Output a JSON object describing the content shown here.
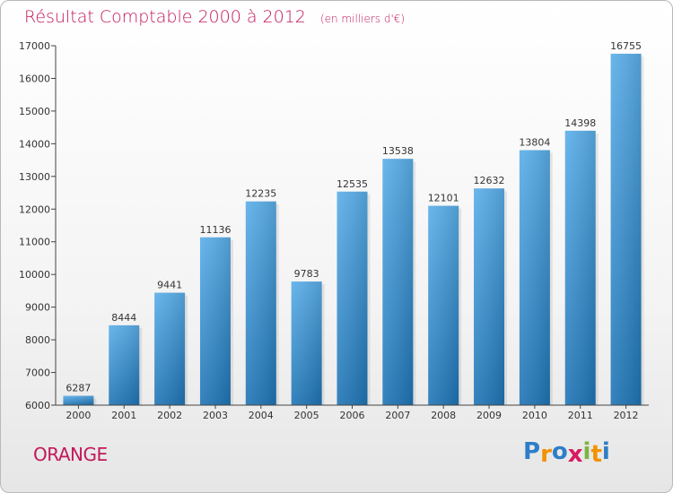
{
  "header": {
    "title": "Résultat Comptable 2000 à 2012",
    "unit": "(en milliers d'€)"
  },
  "footer": {
    "city": "ORANGE",
    "brand_letters": [
      "P",
      "r",
      "o",
      "x",
      "i",
      "t",
      "i"
    ]
  },
  "colors": {
    "title": "#c2185b",
    "bar_top": "#5aaee9",
    "bar_bottom": "#1f74b5",
    "axis": "#444444",
    "brand": [
      "#2e7dc7",
      "#f39200",
      "#2e7dc7",
      "#d81b60",
      "#7cb342",
      "#f39200",
      "#2e7dc7"
    ]
  },
  "chart_data": {
    "type": "bar",
    "title": "Résultat Comptable 2000 à 2012",
    "subtitle": "(en milliers d'€)",
    "xlabel": "",
    "ylabel": "",
    "categories": [
      "2000",
      "2001",
      "2002",
      "2003",
      "2004",
      "2005",
      "2006",
      "2007",
      "2008",
      "2009",
      "2010",
      "2011",
      "2012"
    ],
    "values": [
      6287,
      8444,
      9441,
      11136,
      12235,
      9783,
      12535,
      13538,
      12101,
      12632,
      13804,
      14398,
      16755
    ],
    "ylim": [
      6000,
      17000
    ],
    "yticks": [
      6000,
      7000,
      8000,
      9000,
      10000,
      11000,
      12000,
      13000,
      14000,
      15000,
      16000,
      17000
    ],
    "grid": false,
    "legend": "none"
  }
}
